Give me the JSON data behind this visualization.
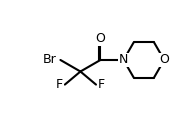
{
  "background_color": "#ffffff",
  "bond_color": "#000000",
  "bond_width": 1.5,
  "font_size": 9,
  "figsize": [
    1.96,
    1.34
  ],
  "dpi": 100,
  "xlim": [
    0.0,
    1.96
  ],
  "ylim": [
    0.0,
    1.34
  ]
}
